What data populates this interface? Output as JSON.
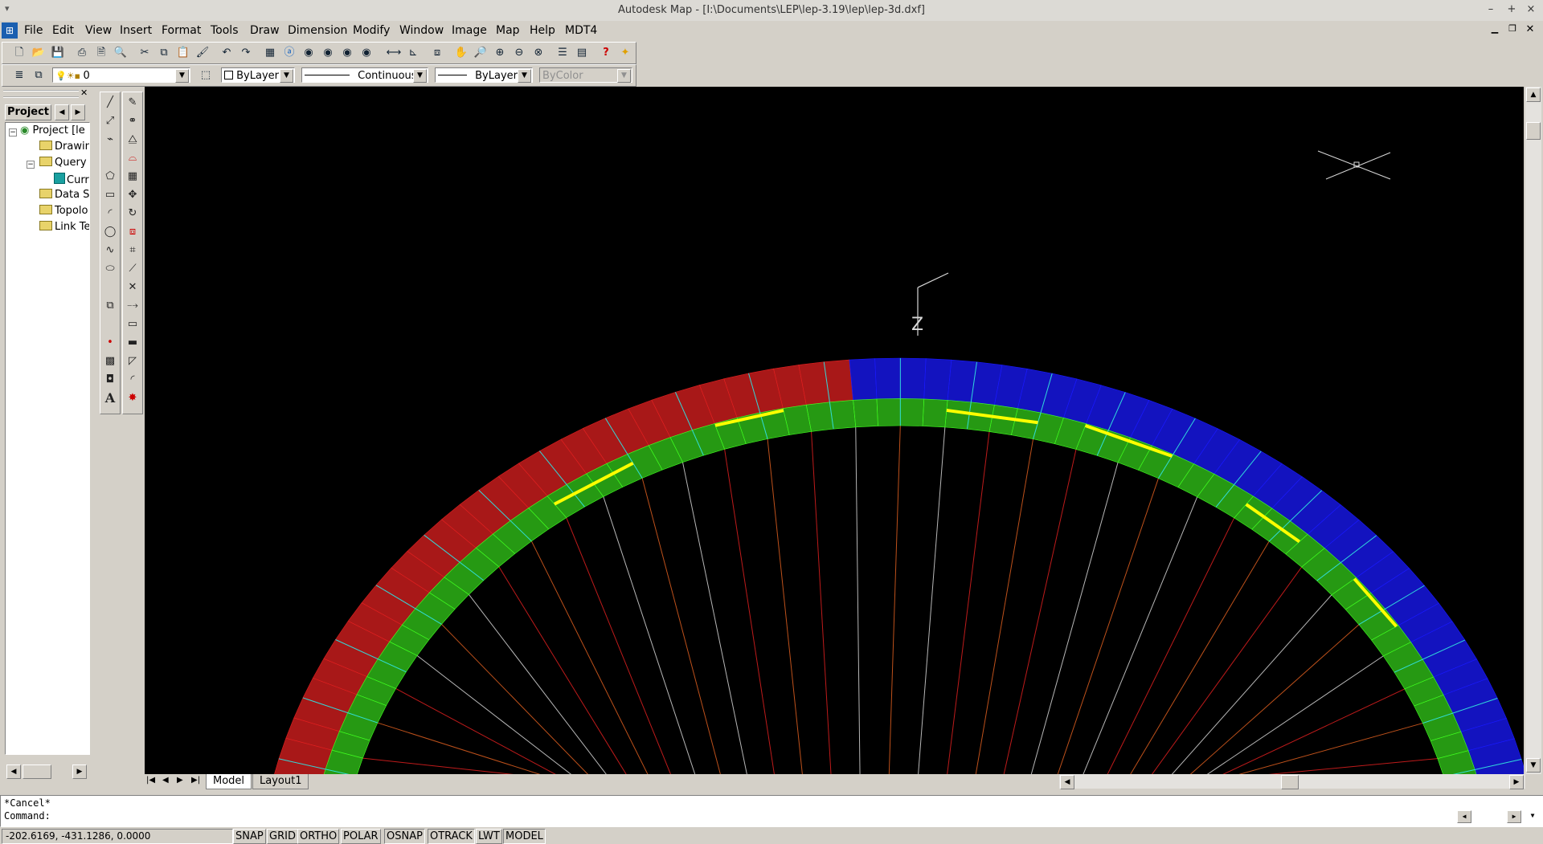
{
  "window": {
    "title": "Autodesk Map - [I:\\Documents\\LEP\\lep-3.19\\lep\\lep-3d.dxf]",
    "minimize": "–",
    "maximize": "+",
    "close": "×"
  },
  "menu": [
    "File",
    "Edit",
    "View",
    "Insert",
    "Format",
    "Tools",
    "Draw",
    "Dimension",
    "Modify",
    "Window",
    "Image",
    "Map",
    "Help",
    "MDT4"
  ],
  "layers": {
    "current_layer": "0",
    "color": "ByLayer",
    "linetype": "Continuous",
    "lineweight": "ByLayer",
    "plotstyle": "ByColor"
  },
  "panel": {
    "tab_label": "Project",
    "items": [
      "Project [le",
      "Drawin",
      "Query",
      "Curr",
      "Data S",
      "Topolo",
      "Link Te"
    ]
  },
  "viewport": {
    "axis_label": "Z"
  },
  "tabs": {
    "model": "Model",
    "layout": "Layout1"
  },
  "command": {
    "history": "*Cancel*",
    "prompt": "Command:"
  },
  "status": {
    "coords": "-202.6169, -431.1286, 0.0000",
    "buttons": [
      "SNAP",
      "GRID",
      "ORTHO",
      "POLAR",
      "OSNAP",
      "OTRACK",
      "LWT",
      "MODEL"
    ]
  },
  "colors": {
    "canvas_bg": "#000000",
    "canopy_red": "#e02020",
    "canopy_blue": "#1a1aff",
    "ribs_green": "#40ff20",
    "lines_white": "#d8d8d8",
    "lines_orange": "#e06020",
    "highlight_yellow": "#ffff00",
    "cyan": "#30d8d8"
  }
}
